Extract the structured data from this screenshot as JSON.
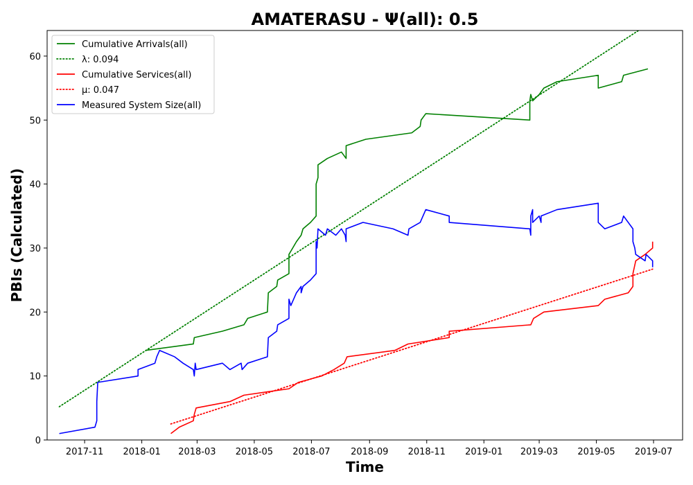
{
  "chart_data": {
    "type": "line",
    "title": "AMATERASU -  Ψ(all): 0.5",
    "xlabel": "Time",
    "ylabel": "PBIs (Calculated)",
    "xlim": [
      "2017-09-22",
      "2019-08-01"
    ],
    "ylim": [
      0,
      64
    ],
    "x_ticks": [
      {
        "date": "2017-11-01",
        "label": "2017-11"
      },
      {
        "date": "2018-01-01",
        "label": "2018-01"
      },
      {
        "date": "2018-03-01",
        "label": "2018-03"
      },
      {
        "date": "2018-05-01",
        "label": "2018-05"
      },
      {
        "date": "2018-07-01",
        "label": "2018-07"
      },
      {
        "date": "2018-09-01",
        "label": "2018-09"
      },
      {
        "date": "2018-11-01",
        "label": "2018-11"
      },
      {
        "date": "2019-01-01",
        "label": "2019-01"
      },
      {
        "date": "2019-03-01",
        "label": "2019-03"
      },
      {
        "date": "2019-05-01",
        "label": "2019-05"
      },
      {
        "date": "2019-07-01",
        "label": "2019-07"
      }
    ],
    "y_ticks": [
      0,
      10,
      20,
      30,
      40,
      50,
      60
    ],
    "legend_position": "upper-left",
    "grid": false,
    "series": [
      {
        "name": "Cumulative Arrivals(all)",
        "style": "solid",
        "color": "#008000",
        "points": [
          [
            "2018-01-05",
            14
          ],
          [
            "2018-02-25",
            15
          ],
          [
            "2018-02-26",
            16
          ],
          [
            "2018-03-28",
            17
          ],
          [
            "2018-04-20",
            18
          ],
          [
            "2018-04-24",
            19
          ],
          [
            "2018-05-15",
            20
          ],
          [
            "2018-05-16",
            23
          ],
          [
            "2018-05-25",
            24
          ],
          [
            "2018-05-26",
            25
          ],
          [
            "2018-06-07",
            26
          ],
          [
            "2018-06-07",
            29
          ],
          [
            "2018-06-11",
            30
          ],
          [
            "2018-06-15",
            31
          ],
          [
            "2018-06-20",
            32
          ],
          [
            "2018-06-22",
            33
          ],
          [
            "2018-06-30",
            34
          ],
          [
            "2018-07-06",
            35
          ],
          [
            "2018-07-06",
            40
          ],
          [
            "2018-07-08",
            41
          ],
          [
            "2018-07-08",
            43
          ],
          [
            "2018-07-18",
            44
          ],
          [
            "2018-08-02",
            45
          ],
          [
            "2018-08-07",
            44
          ],
          [
            "2018-08-07",
            46
          ],
          [
            "2018-08-28",
            47
          ],
          [
            "2018-10-16",
            48
          ],
          [
            "2018-10-25",
            49
          ],
          [
            "2018-10-26",
            50
          ],
          [
            "2018-10-31",
            51
          ],
          [
            "2019-02-19",
            50
          ],
          [
            "2019-02-19",
            53
          ],
          [
            "2019-02-20",
            54
          ],
          [
            "2019-02-22",
            53
          ],
          [
            "2019-03-01",
            54
          ],
          [
            "2019-03-06",
            55
          ],
          [
            "2019-03-20",
            56
          ],
          [
            "2019-05-03",
            57
          ],
          [
            "2019-05-03",
            55
          ],
          [
            "2019-05-28",
            56
          ],
          [
            "2019-05-30",
            57
          ],
          [
            "2019-06-25",
            58
          ]
        ]
      },
      {
        "name": "λ: 0.094",
        "style": "dotted",
        "color": "#008000",
        "points": [
          [
            "2017-10-05",
            5.2
          ],
          [
            "2019-06-15",
            64
          ]
        ]
      },
      {
        "name": "Cumulative Services(all)",
        "style": "solid",
        "color": "#ff0000",
        "points": [
          [
            "2018-02-01",
            1
          ],
          [
            "2018-02-10",
            2
          ],
          [
            "2018-02-25",
            3
          ],
          [
            "2018-02-26",
            4
          ],
          [
            "2018-02-28",
            5
          ],
          [
            "2018-04-05",
            6
          ],
          [
            "2018-04-20",
            7
          ],
          [
            "2018-06-07",
            8
          ],
          [
            "2018-06-17",
            9
          ],
          [
            "2018-07-12",
            10
          ],
          [
            "2018-07-25",
            11
          ],
          [
            "2018-08-05",
            12
          ],
          [
            "2018-08-08",
            13
          ],
          [
            "2018-09-28",
            14
          ],
          [
            "2018-10-12",
            15
          ],
          [
            "2018-11-25",
            16
          ],
          [
            "2018-11-25",
            17
          ],
          [
            "2019-02-20",
            18
          ],
          [
            "2019-02-23",
            19
          ],
          [
            "2019-03-06",
            20
          ],
          [
            "2019-05-03",
            21
          ],
          [
            "2019-05-10",
            22
          ],
          [
            "2019-06-04",
            23
          ],
          [
            "2019-06-09",
            24
          ],
          [
            "2019-06-09",
            26
          ],
          [
            "2019-06-12",
            28
          ],
          [
            "2019-06-22",
            29
          ],
          [
            "2019-06-30",
            30
          ],
          [
            "2019-06-30",
            31
          ]
        ]
      },
      {
        "name": "μ: 0.047",
        "style": "dotted",
        "color": "#ff0000",
        "points": [
          [
            "2018-02-01",
            2.5
          ],
          [
            "2019-06-30",
            26.7
          ]
        ]
      },
      {
        "name": "Measured System Size(all)",
        "style": "solid",
        "color": "#0000ff",
        "points": [
          [
            "2017-10-05",
            1
          ],
          [
            "2017-11-12",
            2
          ],
          [
            "2017-11-14",
            3
          ],
          [
            "2017-11-14",
            6
          ],
          [
            "2017-11-15",
            9
          ],
          [
            "2017-12-28",
            10
          ],
          [
            "2017-12-28",
            11
          ],
          [
            "2018-01-15",
            12
          ],
          [
            "2018-01-17",
            13
          ],
          [
            "2018-01-20",
            14
          ],
          [
            "2018-02-05",
            13
          ],
          [
            "2018-02-14",
            12
          ],
          [
            "2018-02-25",
            11
          ],
          [
            "2018-02-26",
            10
          ],
          [
            "2018-02-27",
            12
          ],
          [
            "2018-02-28",
            11
          ],
          [
            "2018-03-28",
            12
          ],
          [
            "2018-04-05",
            11
          ],
          [
            "2018-04-17",
            12
          ],
          [
            "2018-04-18",
            11
          ],
          [
            "2018-04-24",
            12
          ],
          [
            "2018-05-15",
            13
          ],
          [
            "2018-05-16",
            16
          ],
          [
            "2018-05-25",
            17
          ],
          [
            "2018-05-26",
            18
          ],
          [
            "2018-06-07",
            19
          ],
          [
            "2018-06-07",
            22
          ],
          [
            "2018-06-09",
            21
          ],
          [
            "2018-06-12",
            22
          ],
          [
            "2018-06-15",
            23
          ],
          [
            "2018-06-20",
            24
          ],
          [
            "2018-06-20",
            23
          ],
          [
            "2018-06-22",
            24
          ],
          [
            "2018-06-30",
            25
          ],
          [
            "2018-07-06",
            26
          ],
          [
            "2018-07-06",
            31
          ],
          [
            "2018-07-07",
            30
          ],
          [
            "2018-07-08",
            33
          ],
          [
            "2018-07-16",
            32
          ],
          [
            "2018-07-18",
            33
          ],
          [
            "2018-07-27",
            32
          ],
          [
            "2018-08-02",
            33
          ],
          [
            "2018-08-06",
            32
          ],
          [
            "2018-08-07",
            31
          ],
          [
            "2018-08-07",
            33
          ],
          [
            "2018-08-25",
            34
          ],
          [
            "2018-09-26",
            33
          ],
          [
            "2018-10-12",
            32
          ],
          [
            "2018-10-13",
            33
          ],
          [
            "2018-10-25",
            34
          ],
          [
            "2018-10-31",
            36
          ],
          [
            "2018-11-25",
            35
          ],
          [
            "2018-11-25",
            34
          ],
          [
            "2019-02-19",
            33
          ],
          [
            "2019-02-20",
            32
          ],
          [
            "2019-02-20",
            35
          ],
          [
            "2019-02-22",
            36
          ],
          [
            "2019-02-22",
            34
          ],
          [
            "2019-03-01",
            35
          ],
          [
            "2019-03-03",
            34
          ],
          [
            "2019-03-03",
            35
          ],
          [
            "2019-03-20",
            36
          ],
          [
            "2019-05-03",
            37
          ],
          [
            "2019-05-03",
            34
          ],
          [
            "2019-05-10",
            33
          ],
          [
            "2019-05-28",
            34
          ],
          [
            "2019-05-30",
            35
          ],
          [
            "2019-06-09",
            33
          ],
          [
            "2019-06-09",
            31
          ],
          [
            "2019-06-11",
            30
          ],
          [
            "2019-06-12",
            29
          ],
          [
            "2019-06-22",
            28
          ],
          [
            "2019-06-23",
            29
          ],
          [
            "2019-06-30",
            28
          ],
          [
            "2019-06-30",
            27
          ]
        ]
      }
    ]
  }
}
